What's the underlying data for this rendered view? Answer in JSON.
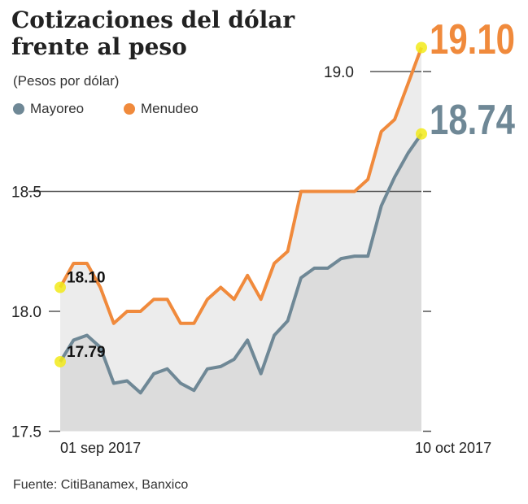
{
  "title": "Cotizaciones del dólar frente al peso",
  "subtitle": "(Pesos por dólar)",
  "source": "Fuente: CitiBanamex, Banxico",
  "chart_data": {
    "type": "line",
    "title": "Cotizaciones del dólar frente al peso",
    "ylabel": "(Pesos por dólar)",
    "ylim": [
      17.5,
      19.1
    ],
    "yticks": [
      "17.5",
      "18.0",
      "18.5",
      "19.0"
    ],
    "xtick_labels": [
      "01 sep 2017",
      "10 oct 2017"
    ],
    "legend": "top-left",
    "series": [
      {
        "name": "Mayoreo",
        "color": "#6f8896",
        "start_label": "17.79",
        "end_label": "18.74",
        "values": [
          17.79,
          17.88,
          17.9,
          17.85,
          17.7,
          17.71,
          17.66,
          17.74,
          17.76,
          17.7,
          17.67,
          17.76,
          17.77,
          17.8,
          17.88,
          17.74,
          17.9,
          17.96,
          18.14,
          18.18,
          18.18,
          18.22,
          18.23,
          18.23,
          18.44,
          18.56,
          18.66,
          18.74
        ]
      },
      {
        "name": "Menudeo",
        "color": "#f08a3c",
        "start_label": "18.10",
        "end_label": "19.10",
        "values": [
          18.1,
          18.2,
          18.2,
          18.1,
          17.95,
          18.0,
          18.0,
          18.05,
          18.05,
          17.95,
          17.95,
          18.05,
          18.1,
          18.05,
          18.15,
          18.05,
          18.2,
          18.25,
          18.5,
          18.5,
          18.5,
          18.5,
          18.5,
          18.55,
          18.75,
          18.8,
          18.95,
          19.1
        ]
      }
    ]
  }
}
